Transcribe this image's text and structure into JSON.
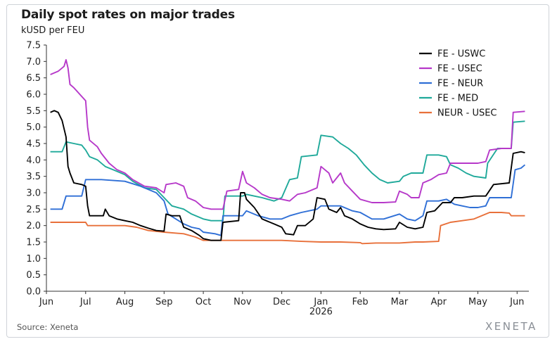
{
  "header": {
    "title": "Daily spot rates on major trades",
    "subtitle": "kUSD per FEU"
  },
  "footer": {
    "source": "Source: Xeneta",
    "brand": "XENETA"
  },
  "chart_data": {
    "type": "line",
    "title": "Daily spot rates on major trades",
    "ylabel": "kUSD per FEU",
    "ylim": [
      0,
      7.5
    ],
    "yticks": [
      "0.0",
      "0.5",
      "1.0",
      "1.5",
      "2.0",
      "2.5",
      "3.0",
      "3.5",
      "4.0",
      "4.5",
      "5.0",
      "5.5",
      "6.0",
      "6.5",
      "7.0",
      "7.5"
    ],
    "xlim": [
      0,
      12.3
    ],
    "xticks": [
      {
        "label": "Jun",
        "x": 0
      },
      {
        "label": "Jul",
        "x": 1
      },
      {
        "label": "Aug",
        "x": 2
      },
      {
        "label": "Sep",
        "x": 3
      },
      {
        "label": "Oct",
        "x": 4
      },
      {
        "label": "Nov",
        "x": 5
      },
      {
        "label": "Dec",
        "x": 6
      },
      {
        "label": "Jan",
        "x": 7
      },
      {
        "label": "Feb",
        "x": 8
      },
      {
        "label": "Mar",
        "x": 9
      },
      {
        "label": "Apr",
        "x": 10
      },
      {
        "label": "May",
        "x": 11
      },
      {
        "label": "Jun",
        "x": 12
      }
    ],
    "year_label": "2026",
    "legend_position": "top-right",
    "grid": false,
    "series": [
      {
        "name": "FE - USWC",
        "color": "#000000",
        "points": [
          [
            0.1,
            5.45
          ],
          [
            0.2,
            5.5
          ],
          [
            0.3,
            5.45
          ],
          [
            0.4,
            5.2
          ],
          [
            0.5,
            4.7
          ],
          [
            0.55,
            3.8
          ],
          [
            0.6,
            3.6
          ],
          [
            0.7,
            3.3
          ],
          [
            0.9,
            3.25
          ],
          [
            1.0,
            3.2
          ],
          [
            1.05,
            2.6
          ],
          [
            1.1,
            2.3
          ],
          [
            1.3,
            2.3
          ],
          [
            1.45,
            2.3
          ],
          [
            1.5,
            2.5
          ],
          [
            1.6,
            2.3
          ],
          [
            1.8,
            2.2
          ],
          [
            2.0,
            2.15
          ],
          [
            2.2,
            2.1
          ],
          [
            2.4,
            2.0
          ],
          [
            2.6,
            1.92
          ],
          [
            2.8,
            1.85
          ],
          [
            3.0,
            1.83
          ],
          [
            3.05,
            2.35
          ],
          [
            3.2,
            2.3
          ],
          [
            3.4,
            2.3
          ],
          [
            3.5,
            1.95
          ],
          [
            3.7,
            1.85
          ],
          [
            3.9,
            1.7
          ],
          [
            4.0,
            1.6
          ],
          [
            4.2,
            1.55
          ],
          [
            4.45,
            1.55
          ],
          [
            4.5,
            2.1
          ],
          [
            4.9,
            2.15
          ],
          [
            4.95,
            3.0
          ],
          [
            5.05,
            3.0
          ],
          [
            5.1,
            2.8
          ],
          [
            5.3,
            2.55
          ],
          [
            5.5,
            2.2
          ],
          [
            5.8,
            2.05
          ],
          [
            6.0,
            1.95
          ],
          [
            6.1,
            1.75
          ],
          [
            6.3,
            1.72
          ],
          [
            6.4,
            2.0
          ],
          [
            6.6,
            2.0
          ],
          [
            6.8,
            2.2
          ],
          [
            6.9,
            2.85
          ],
          [
            7.1,
            2.8
          ],
          [
            7.2,
            2.5
          ],
          [
            7.4,
            2.4
          ],
          [
            7.5,
            2.55
          ],
          [
            7.6,
            2.3
          ],
          [
            7.8,
            2.2
          ],
          [
            8.0,
            2.05
          ],
          [
            8.2,
            1.95
          ],
          [
            8.4,
            1.9
          ],
          [
            8.6,
            1.88
          ],
          [
            8.9,
            1.9
          ],
          [
            9.0,
            2.1
          ],
          [
            9.2,
            1.95
          ],
          [
            9.4,
            1.9
          ],
          [
            9.6,
            1.95
          ],
          [
            9.7,
            2.4
          ],
          [
            9.9,
            2.45
          ],
          [
            10.1,
            2.7
          ],
          [
            10.3,
            2.7
          ],
          [
            10.4,
            2.85
          ],
          [
            10.6,
            2.85
          ],
          [
            10.9,
            2.9
          ],
          [
            11.2,
            2.9
          ],
          [
            11.4,
            3.25
          ],
          [
            11.8,
            3.3
          ],
          [
            11.9,
            4.2
          ],
          [
            12.1,
            4.25
          ],
          [
            12.2,
            4.22
          ]
        ]
      },
      {
        "name": "FE - USEC",
        "color": "#b638c9",
        "points": [
          [
            0.1,
            6.6
          ],
          [
            0.3,
            6.7
          ],
          [
            0.45,
            6.85
          ],
          [
            0.5,
            7.05
          ],
          [
            0.55,
            6.8
          ],
          [
            0.6,
            6.3
          ],
          [
            0.7,
            6.2
          ],
          [
            0.85,
            6.0
          ],
          [
            1.0,
            5.8
          ],
          [
            1.05,
            5.0
          ],
          [
            1.1,
            4.6
          ],
          [
            1.3,
            4.4
          ],
          [
            1.4,
            4.2
          ],
          [
            1.6,
            3.9
          ],
          [
            1.8,
            3.7
          ],
          [
            2.0,
            3.6
          ],
          [
            2.2,
            3.4
          ],
          [
            2.5,
            3.2
          ],
          [
            2.8,
            3.15
          ],
          [
            3.0,
            3.0
          ],
          [
            3.05,
            3.25
          ],
          [
            3.3,
            3.3
          ],
          [
            3.5,
            3.2
          ],
          [
            3.6,
            2.85
          ],
          [
            3.8,
            2.75
          ],
          [
            4.0,
            2.55
          ],
          [
            4.2,
            2.5
          ],
          [
            4.5,
            2.5
          ],
          [
            4.6,
            3.05
          ],
          [
            4.9,
            3.1
          ],
          [
            5.0,
            3.65
          ],
          [
            5.1,
            3.3
          ],
          [
            5.3,
            3.15
          ],
          [
            5.5,
            2.95
          ],
          [
            5.7,
            2.85
          ],
          [
            6.0,
            2.8
          ],
          [
            6.2,
            2.75
          ],
          [
            6.4,
            2.95
          ],
          [
            6.6,
            3.0
          ],
          [
            6.9,
            3.15
          ],
          [
            7.0,
            3.8
          ],
          [
            7.2,
            3.6
          ],
          [
            7.3,
            3.3
          ],
          [
            7.5,
            3.6
          ],
          [
            7.6,
            3.3
          ],
          [
            7.8,
            3.05
          ],
          [
            8.0,
            2.8
          ],
          [
            8.3,
            2.7
          ],
          [
            8.6,
            2.7
          ],
          [
            8.9,
            2.72
          ],
          [
            9.0,
            3.05
          ],
          [
            9.2,
            2.95
          ],
          [
            9.3,
            2.85
          ],
          [
            9.5,
            2.85
          ],
          [
            9.6,
            3.3
          ],
          [
            9.8,
            3.4
          ],
          [
            10.0,
            3.55
          ],
          [
            10.2,
            3.6
          ],
          [
            10.3,
            3.9
          ],
          [
            10.6,
            3.9
          ],
          [
            11.0,
            3.9
          ],
          [
            11.2,
            3.95
          ],
          [
            11.3,
            4.3
          ],
          [
            11.6,
            4.35
          ],
          [
            11.85,
            4.35
          ],
          [
            11.9,
            5.45
          ],
          [
            12.2,
            5.48
          ]
        ]
      },
      {
        "name": "FE - NEUR",
        "color": "#2f6fd6",
        "points": [
          [
            0.1,
            2.5
          ],
          [
            0.4,
            2.5
          ],
          [
            0.5,
            2.9
          ],
          [
            0.9,
            2.9
          ],
          [
            1.0,
            3.4
          ],
          [
            1.4,
            3.4
          ],
          [
            2.0,
            3.35
          ],
          [
            2.4,
            3.2
          ],
          [
            2.8,
            3.0
          ],
          [
            3.0,
            2.75
          ],
          [
            3.1,
            2.35
          ],
          [
            3.5,
            2.05
          ],
          [
            3.7,
            1.95
          ],
          [
            3.9,
            1.9
          ],
          [
            4.0,
            1.8
          ],
          [
            4.3,
            1.75
          ],
          [
            4.45,
            1.7
          ],
          [
            4.5,
            2.3
          ],
          [
            5.0,
            2.3
          ],
          [
            5.1,
            2.45
          ],
          [
            5.4,
            2.3
          ],
          [
            5.7,
            2.2
          ],
          [
            6.0,
            2.2
          ],
          [
            6.2,
            2.3
          ],
          [
            6.5,
            2.4
          ],
          [
            6.9,
            2.5
          ],
          [
            7.0,
            2.6
          ],
          [
            7.5,
            2.6
          ],
          [
            7.8,
            2.45
          ],
          [
            8.0,
            2.4
          ],
          [
            8.3,
            2.2
          ],
          [
            8.6,
            2.2
          ],
          [
            9.0,
            2.35
          ],
          [
            9.2,
            2.2
          ],
          [
            9.4,
            2.15
          ],
          [
            9.6,
            2.3
          ],
          [
            9.7,
            2.75
          ],
          [
            10.0,
            2.75
          ],
          [
            10.2,
            2.8
          ],
          [
            10.4,
            2.65
          ],
          [
            10.6,
            2.6
          ],
          [
            10.8,
            2.55
          ],
          [
            11.0,
            2.55
          ],
          [
            11.2,
            2.6
          ],
          [
            11.3,
            2.85
          ],
          [
            11.6,
            2.85
          ],
          [
            11.85,
            2.85
          ],
          [
            11.95,
            3.7
          ],
          [
            12.1,
            3.75
          ],
          [
            12.2,
            3.85
          ]
        ]
      },
      {
        "name": "FE - MED",
        "color": "#1fa99a",
        "points": [
          [
            0.1,
            4.25
          ],
          [
            0.4,
            4.25
          ],
          [
            0.5,
            4.55
          ],
          [
            0.7,
            4.5
          ],
          [
            0.9,
            4.45
          ],
          [
            1.0,
            4.3
          ],
          [
            1.1,
            4.1
          ],
          [
            1.3,
            4.0
          ],
          [
            1.5,
            3.8
          ],
          [
            1.7,
            3.7
          ],
          [
            2.0,
            3.55
          ],
          [
            2.2,
            3.35
          ],
          [
            2.5,
            3.15
          ],
          [
            2.8,
            3.1
          ],
          [
            3.0,
            2.85
          ],
          [
            3.2,
            2.6
          ],
          [
            3.5,
            2.5
          ],
          [
            3.7,
            2.35
          ],
          [
            4.0,
            2.2
          ],
          [
            4.2,
            2.15
          ],
          [
            4.5,
            2.15
          ],
          [
            4.55,
            2.9
          ],
          [
            5.0,
            2.9
          ],
          [
            5.1,
            2.95
          ],
          [
            5.3,
            2.9
          ],
          [
            5.5,
            2.85
          ],
          [
            5.8,
            2.75
          ],
          [
            6.0,
            2.85
          ],
          [
            6.2,
            3.4
          ],
          [
            6.4,
            3.45
          ],
          [
            6.5,
            4.1
          ],
          [
            6.9,
            4.15
          ],
          [
            7.0,
            4.75
          ],
          [
            7.3,
            4.7
          ],
          [
            7.5,
            4.5
          ],
          [
            7.7,
            4.35
          ],
          [
            7.9,
            4.15
          ],
          [
            8.1,
            3.85
          ],
          [
            8.3,
            3.6
          ],
          [
            8.5,
            3.4
          ],
          [
            8.7,
            3.3
          ],
          [
            9.0,
            3.35
          ],
          [
            9.1,
            3.5
          ],
          [
            9.3,
            3.6
          ],
          [
            9.6,
            3.6
          ],
          [
            9.7,
            4.15
          ],
          [
            10.0,
            4.15
          ],
          [
            10.2,
            4.1
          ],
          [
            10.3,
            3.85
          ],
          [
            10.5,
            3.75
          ],
          [
            10.7,
            3.6
          ],
          [
            10.9,
            3.5
          ],
          [
            11.2,
            3.45
          ],
          [
            11.25,
            3.9
          ],
          [
            11.5,
            4.35
          ],
          [
            11.85,
            4.35
          ],
          [
            11.9,
            5.15
          ],
          [
            12.2,
            5.18
          ]
        ]
      },
      {
        "name": "NEUR - USEC",
        "color": "#e8703a",
        "points": [
          [
            0.1,
            2.1
          ],
          [
            1.0,
            2.1
          ],
          [
            1.05,
            2.0
          ],
          [
            2.0,
            2.0
          ],
          [
            2.3,
            1.95
          ],
          [
            2.6,
            1.85
          ],
          [
            3.0,
            1.8
          ],
          [
            3.5,
            1.75
          ],
          [
            3.8,
            1.65
          ],
          [
            4.0,
            1.55
          ],
          [
            4.4,
            1.55
          ],
          [
            5.0,
            1.55
          ],
          [
            5.5,
            1.55
          ],
          [
            6.0,
            1.55
          ],
          [
            6.5,
            1.52
          ],
          [
            7.0,
            1.5
          ],
          [
            7.5,
            1.5
          ],
          [
            8.0,
            1.48
          ],
          [
            8.05,
            1.45
          ],
          [
            8.4,
            1.47
          ],
          [
            8.8,
            1.47
          ],
          [
            9.0,
            1.47
          ],
          [
            9.4,
            1.5
          ],
          [
            9.6,
            1.5
          ],
          [
            10.0,
            1.52
          ],
          [
            10.05,
            2.0
          ],
          [
            10.3,
            2.1
          ],
          [
            10.6,
            2.15
          ],
          [
            10.9,
            2.2
          ],
          [
            11.3,
            2.4
          ],
          [
            11.6,
            2.4
          ],
          [
            11.8,
            2.38
          ],
          [
            11.85,
            2.3
          ],
          [
            12.2,
            2.3
          ]
        ]
      }
    ]
  }
}
